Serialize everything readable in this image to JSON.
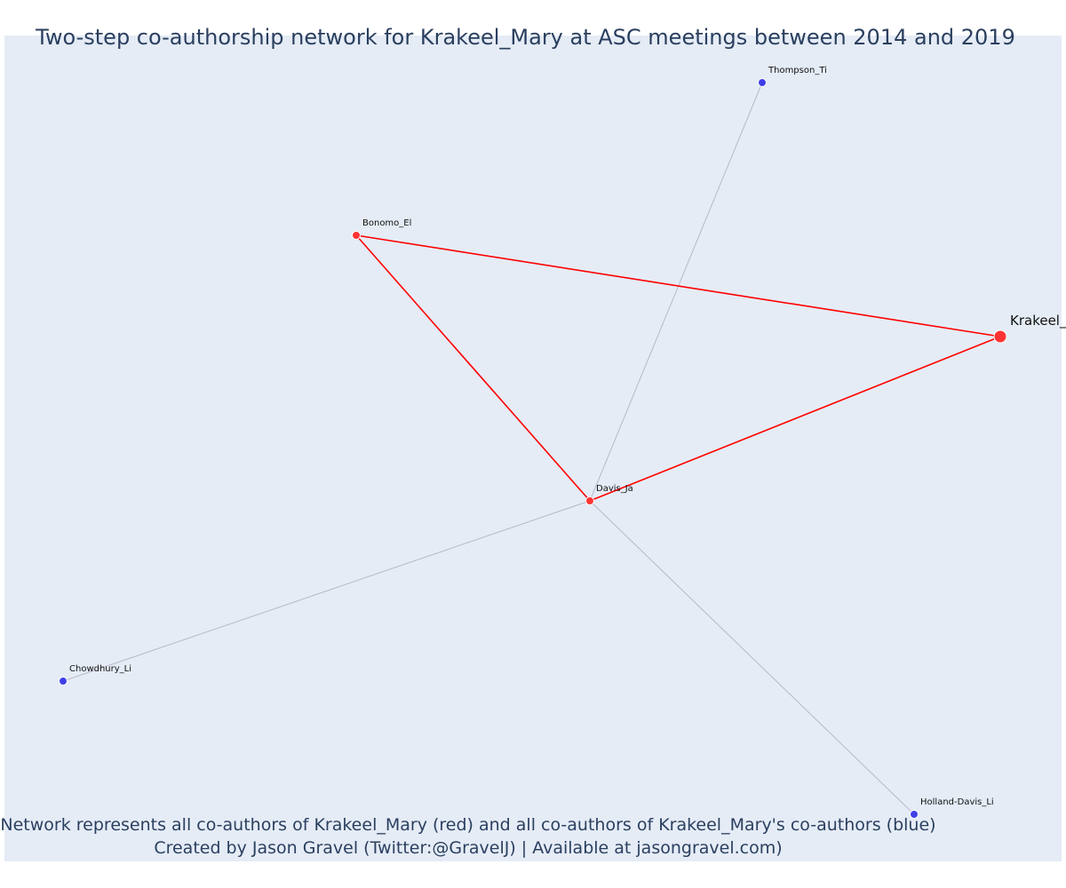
{
  "title": "Two-step co-authorship network for Krakeel_Mary at ASC meetings between 2014 and 2019",
  "footnote": {
    "line1": "Network represents all co-authors of Krakeel_Mary (red) and all co-authors of Krakeel_Mary's co-authors (blue)",
    "line2": "Created by Jason Gravel (Twitter:@GravelJ) | Available at jasongravel.com)"
  },
  "colors": {
    "plot_background": "#e5ecf6",
    "first_degree": "#ff3333",
    "second_degree": "#3f3fe8",
    "first_degree_edge": "#ff0000",
    "second_degree_edge": "#b8b8c8"
  },
  "chart_data": {
    "type": "network",
    "nodes": [
      {
        "id": "Krakeel_Mary",
        "label": "Krakeel_",
        "group": "focal"
      },
      {
        "id": "Bonomo_El",
        "label": "Bonomo_El",
        "group": "co-author"
      },
      {
        "id": "Davis_Ja",
        "label": "Davis_Ja",
        "group": "co-author"
      },
      {
        "id": "Thompson_Ti",
        "label": "Thompson_Ti",
        "group": "co-author-of-co-author"
      },
      {
        "id": "Chowdhury_Li",
        "label": "Chowdhury_Li",
        "group": "co-author-of-co-author"
      },
      {
        "id": "Holland-Davis_Li",
        "label": "Holland-Davis_Li",
        "group": "co-author-of-co-author"
      }
    ],
    "edges": [
      {
        "source": "Krakeel_Mary",
        "target": "Bonomo_El",
        "type": "first-degree"
      },
      {
        "source": "Krakeel_Mary",
        "target": "Davis_Ja",
        "type": "first-degree"
      },
      {
        "source": "Bonomo_El",
        "target": "Davis_Ja",
        "type": "first-degree"
      },
      {
        "source": "Davis_Ja",
        "target": "Thompson_Ti",
        "type": "second-degree"
      },
      {
        "source": "Davis_Ja",
        "target": "Chowdhury_Li",
        "type": "second-degree"
      },
      {
        "source": "Davis_Ja",
        "target": "Holland-Davis_Li",
        "type": "second-degree"
      }
    ]
  }
}
